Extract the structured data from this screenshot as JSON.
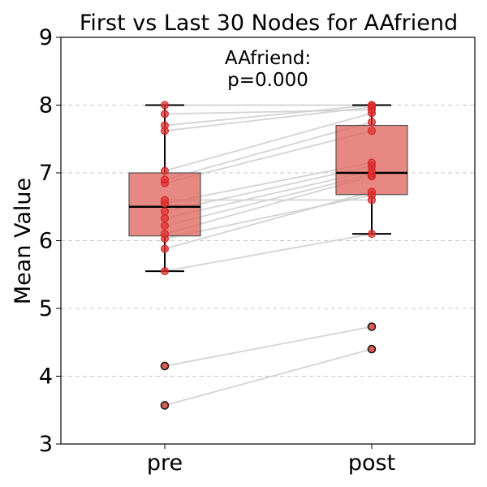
{
  "chart_data": {
    "type": "box",
    "title": "First vs Last 30 Nodes for AAfriend",
    "annotation": {
      "line1": "AAfriend:",
      "line2": "p=0.000"
    },
    "xlabel": "",
    "ylabel": "Mean Value",
    "categories": [
      "pre",
      "post"
    ],
    "ylim": [
      3,
      9
    ],
    "yticks": [
      3,
      4,
      5,
      6,
      7,
      8,
      9
    ],
    "grid": "y-dashed",
    "box_color": "#e06660",
    "point_color": "#e03030",
    "line_color": "#cccccc",
    "boxes": [
      {
        "category": "pre",
        "q1": 6.07,
        "median": 6.5,
        "q3": 7.0,
        "whisker_low": 5.55,
        "whisker_high": 8.0
      },
      {
        "category": "post",
        "q1": 6.68,
        "median": 7.0,
        "q3": 7.7,
        "whisker_low": 6.1,
        "whisker_high": 8.0
      }
    ],
    "pairs": [
      {
        "pre": 3.57,
        "post": 4.4
      },
      {
        "pre": 4.15,
        "post": 4.73
      },
      {
        "pre": 5.55,
        "post": 6.1
      },
      {
        "pre": 5.88,
        "post": 6.72
      },
      {
        "pre": 6.03,
        "post": 6.67
      },
      {
        "pre": 6.1,
        "post": 6.95
      },
      {
        "pre": 6.22,
        "post": 6.98
      },
      {
        "pre": 6.33,
        "post": 7.03
      },
      {
        "pre": 6.43,
        "post": 7.1
      },
      {
        "pre": 6.55,
        "post": 7.15
      },
      {
        "pre": 6.6,
        "post": 6.6
      },
      {
        "pre": 6.85,
        "post": 7.62
      },
      {
        "pre": 6.9,
        "post": 7.75
      },
      {
        "pre": 7.03,
        "post": 7.88
      },
      {
        "pre": 7.62,
        "post": 7.97
      },
      {
        "pre": 7.7,
        "post": 8.0
      },
      {
        "pre": 7.87,
        "post": 7.93
      },
      {
        "pre": 8.0,
        "post": 8.0
      }
    ]
  }
}
